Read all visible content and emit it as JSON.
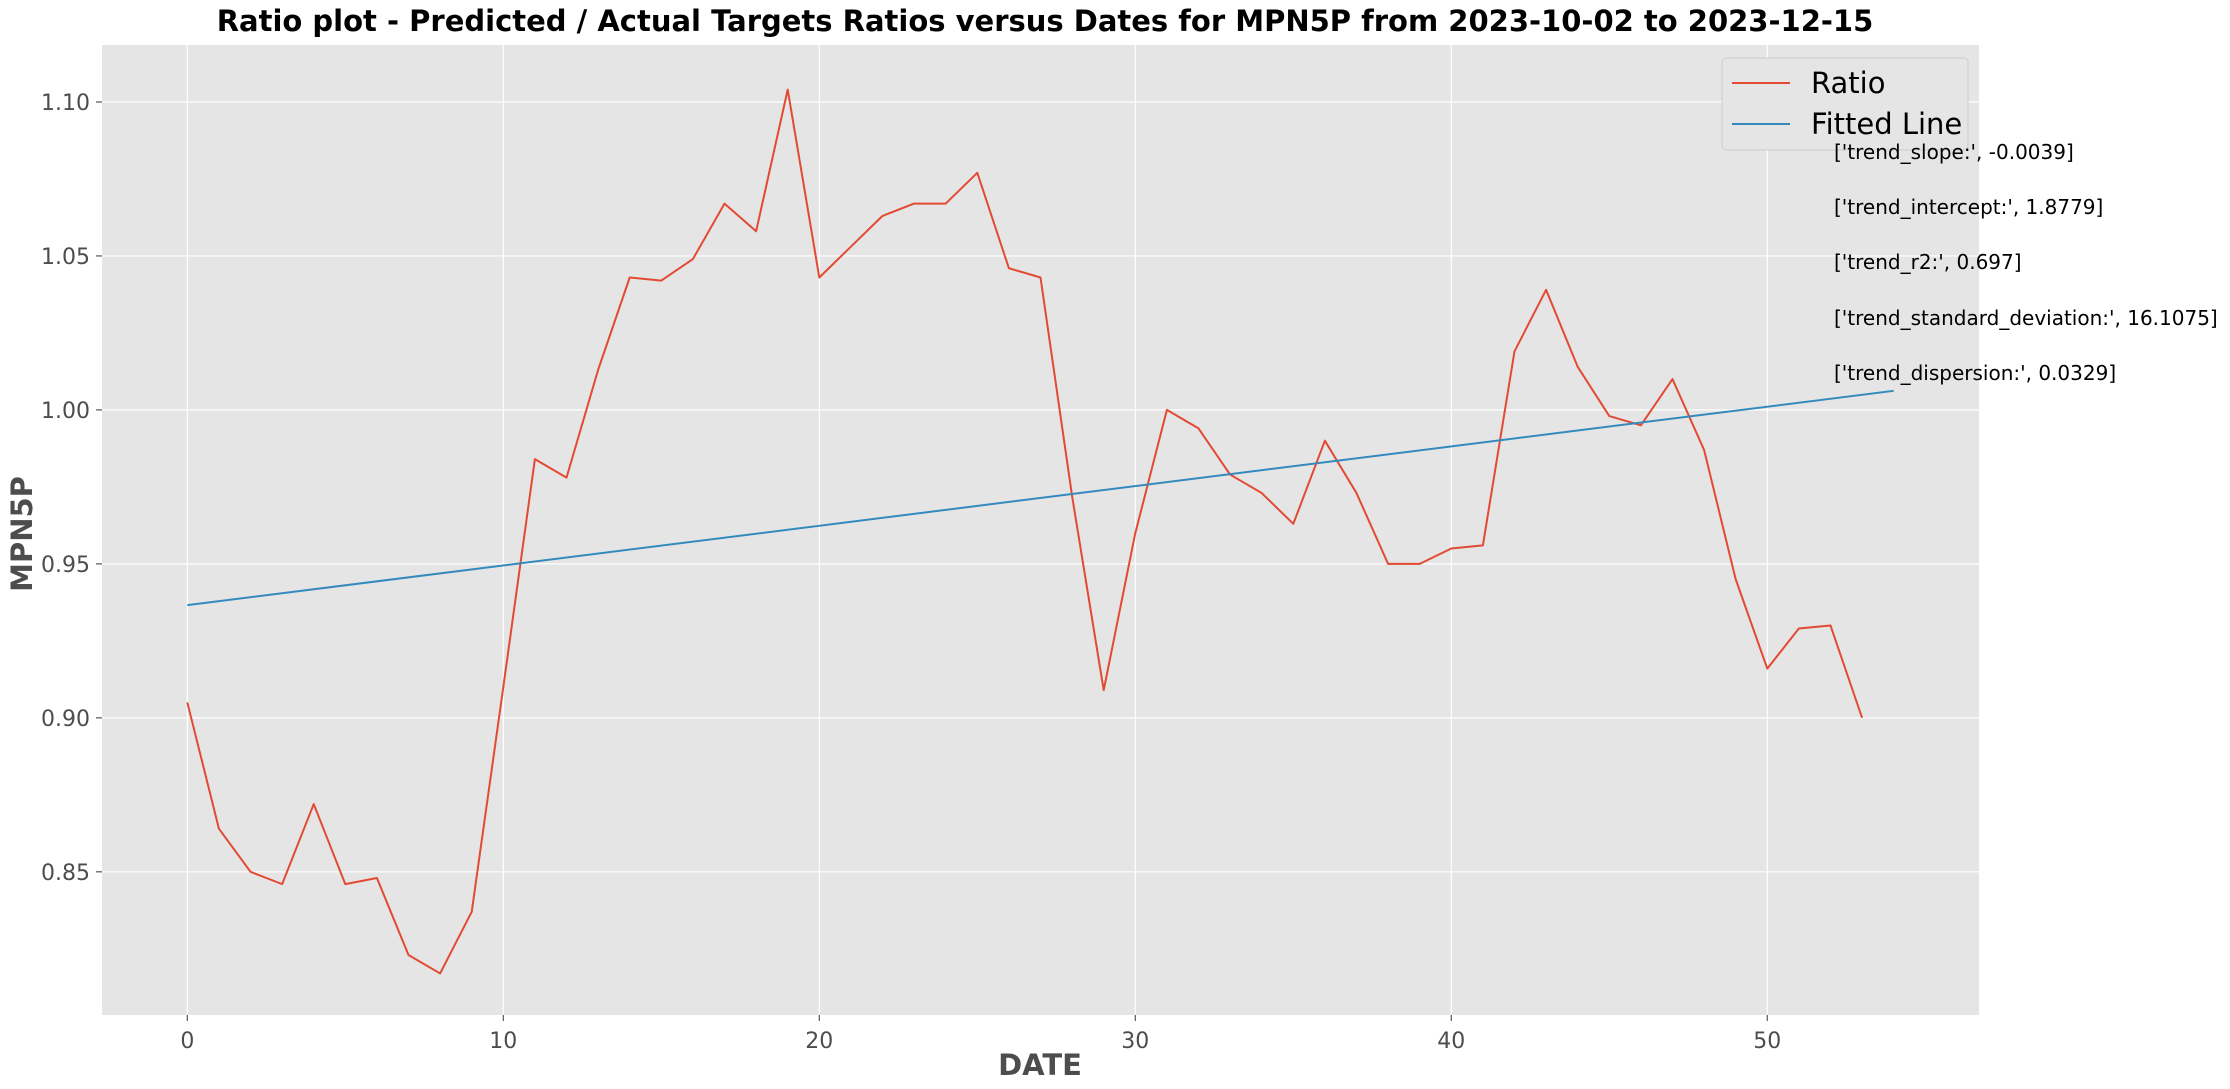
{
  "chart_data": {
    "type": "line",
    "title": "Ratio plot - Predicted / Actual Targets Ratios versus Dates for MPN5P from 2023-10-02 to 2023-12-15",
    "xlabel": "DATE",
    "ylabel": "MPN5P",
    "xlim": [
      -2.7,
      56.7
    ],
    "ylim": [
      0.8035,
      1.1185
    ],
    "x_ticks": [
      0,
      10,
      20,
      30,
      40,
      50
    ],
    "y_ticks": [
      0.85,
      0.9,
      0.95,
      1.0,
      1.05,
      1.1
    ],
    "x_tick_labels": [
      "0",
      "10",
      "20",
      "30",
      "40",
      "50"
    ],
    "y_tick_labels": [
      "0.85",
      "0.90",
      "0.95",
      "1.00",
      "1.05",
      "1.10"
    ],
    "grid": true,
    "legend_position": "top-right",
    "series": [
      {
        "name": "Ratio",
        "color": "#e24a33",
        "x": [
          0,
          1,
          2,
          3,
          4,
          5,
          6,
          7,
          8,
          9,
          10,
          11,
          12,
          13,
          14,
          15,
          16,
          17,
          18,
          19,
          20,
          21,
          22,
          23,
          24,
          25,
          26,
          27,
          28,
          29,
          30,
          31,
          32,
          33,
          34,
          35,
          36,
          37,
          38,
          39,
          40,
          41,
          42,
          43,
          44,
          45,
          46,
          47,
          48,
          49,
          50,
          51,
          52,
          53
        ],
        "y": [
          0.905,
          0.864,
          0.85,
          0.846,
          0.872,
          0.846,
          0.848,
          0.823,
          0.817,
          0.837,
          0.91,
          0.984,
          0.978,
          1.013,
          1.043,
          1.042,
          1.049,
          1.067,
          1.058,
          1.104,
          1.043,
          1.053,
          1.063,
          1.067,
          1.067,
          1.077,
          1.046,
          1.043,
          0.972,
          0.909,
          0.96,
          1.0,
          0.994,
          0.979,
          0.973,
          0.963,
          0.99,
          0.973,
          0.95,
          0.95,
          0.955,
          0.956,
          1.019,
          1.039,
          1.014,
          0.998,
          0.995,
          1.01,
          0.987,
          0.945,
          0.916,
          0.929,
          0.93,
          0.9
        ]
      },
      {
        "name": "Fitted Line",
        "color": "#348abd",
        "x": [
          0,
          54
        ],
        "y": [
          0.9366,
          1.0062
        ]
      }
    ],
    "annotations": [
      "['trend_slope:', -0.0039]",
      "['trend_intercept:', 1.8779]",
      "['trend_r2:', 0.697]",
      "['trend_standard_deviation:', 16.1075]",
      "['trend_dispersion:', 0.0329]"
    ]
  },
  "colors": {
    "plot_background": "#e5e5e5",
    "grid": "#ffffff",
    "legend_background": "#e5e5e5",
    "legend_border": "#cccccc"
  }
}
